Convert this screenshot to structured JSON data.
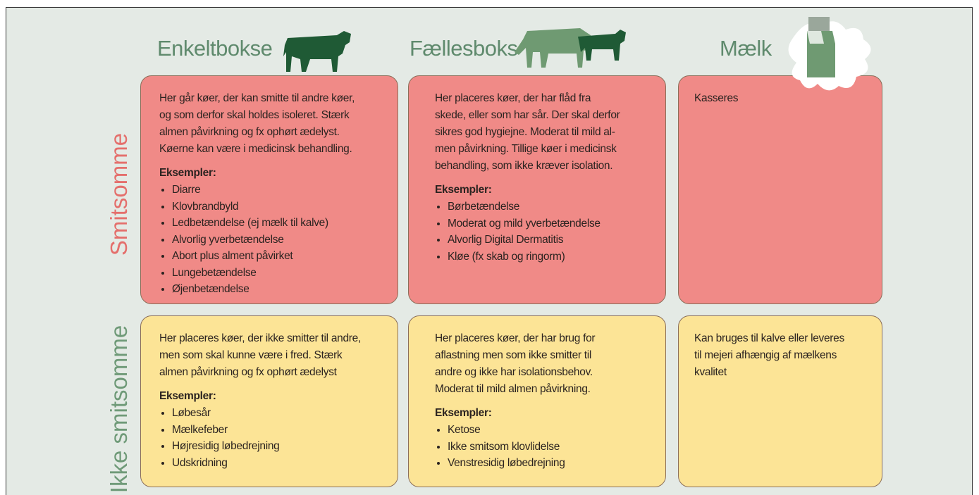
{
  "columns": [
    "Enkeltbokse",
    "Fællesboks",
    "Mælk"
  ],
  "rows": [
    {
      "label": "Smitsomme",
      "cells": [
        {
          "lines": [
            "Her går køer, der kan smitte til andre køer,",
            "og som derfor skal holdes isoleret. Stærk",
            "almen påvirkning og fx ophørt ædelyst.",
            "Køerne kan være i medicinsk behandling."
          ],
          "examples_title": "Eksempler:",
          "examples": [
            "Diarre",
            "Klovbrandbyld",
            "Ledbetændelse (ej mælk til kalve)",
            "Alvorlig yverbetændelse",
            "Abort plus alment påvirket",
            "Lungebetændelse",
            "Øjenbetændelse"
          ]
        },
        {
          "lines": [
            "Her placeres køer, der har flåd fra",
            "skede, eller som har sår. Der skal derfor",
            "sikres god hygiejne. Moderat til mild al-",
            "men påvirkning. Tillige køer i medicinsk",
            "behandling, som ikke kræver isolation."
          ],
          "examples_title": "Eksempler:",
          "examples": [
            "Børbetændelse",
            "Moderat og mild yverbetændelse",
            "Alvorlig Digital Dermatitis",
            "Kløe (fx skab og ringorm)"
          ]
        },
        {
          "lines": [
            "Kasseres"
          ]
        }
      ]
    },
    {
      "label": "Ikke smitsomme",
      "cells": [
        {
          "lines": [
            "Her placeres køer, der ikke smitter til andre,",
            "men som skal kunne være i fred. Stærk",
            "almen påvirkning og fx ophørt ædelyst"
          ],
          "examples_title": "Eksempler:",
          "examples": [
            "Løbesår",
            "Mælkefeber",
            "Højresidig løbedrejning",
            "Udskridning"
          ]
        },
        {
          "lines": [
            "Her placeres køer, der har brug for",
            "aflastning men som ikke smitter til",
            "andre og ikke har isolationsbehov.",
            "Moderat til mild almen påvirkning."
          ],
          "examples_title": "Eksempler:",
          "examples": [
            "Ketose",
            "Ikke smitsom klovlidelse",
            "Venstresidig løbedrejning"
          ]
        },
        {
          "lines": [
            "Kan bruges til kalve eller leveres",
            "til mejeri afhængig af mælkens",
            "kvalitet"
          ]
        }
      ]
    }
  ]
}
